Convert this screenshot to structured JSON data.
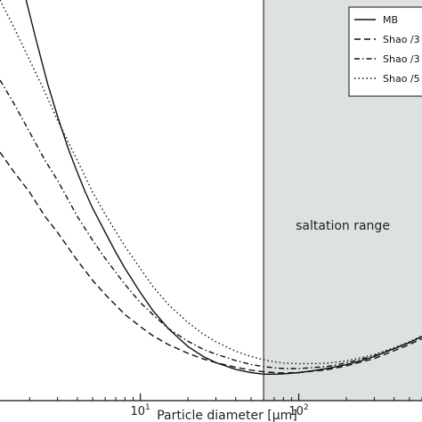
{
  "chart_data": {
    "type": "line",
    "xscale": "log",
    "xlim": [
      1.3,
      600
    ],
    "ylim": [
      0,
      1
    ],
    "xlabel": "Particle diameter [μm]",
    "xticks": [
      {
        "value": 10,
        "base": "10",
        "exp": "1"
      },
      {
        "value": 100,
        "base": "10",
        "exp": "2"
      }
    ],
    "grid": false,
    "legend": "top-right",
    "shaded_region": {
      "x0": 60,
      "x1": 600,
      "label": "saltation range",
      "color": "#dde1e1"
    },
    "series": [
      {
        "name": "MB",
        "style": "solid",
        "x": [
          1.9,
          2.2,
          2.6,
          3,
          3.5,
          4,
          4.5,
          5,
          6,
          7,
          8,
          10,
          12,
          15,
          20,
          25,
          30,
          40,
          50,
          60,
          70,
          80,
          100,
          120,
          150,
          200,
          250,
          300,
          400,
          500,
          600
        ],
        "y": [
          1.0,
          0.9,
          0.79,
          0.71,
          0.63,
          0.57,
          0.52,
          0.48,
          0.42,
          0.37,
          0.33,
          0.27,
          0.225,
          0.18,
          0.135,
          0.11,
          0.095,
          0.078,
          0.07,
          0.066,
          0.066,
          0.067,
          0.07,
          0.074,
          0.08,
          0.09,
          0.1,
          0.11,
          0.13,
          0.145,
          0.16
        ]
      },
      {
        "name": "Shao /3",
        "style": "dashed",
        "x": [
          1.3,
          1.6,
          2,
          2.5,
          3,
          4,
          5,
          6,
          8,
          10,
          12,
          15,
          20,
          25,
          30,
          40,
          50,
          60,
          70,
          80,
          100,
          150,
          200,
          300,
          400,
          500,
          600
        ],
        "y": [
          0.62,
          0.57,
          0.52,
          0.46,
          0.42,
          0.35,
          0.3,
          0.265,
          0.215,
          0.185,
          0.162,
          0.14,
          0.118,
          0.104,
          0.095,
          0.083,
          0.076,
          0.072,
          0.07,
          0.069,
          0.07,
          0.077,
          0.087,
          0.105,
          0.125,
          0.14,
          0.155
        ]
      },
      {
        "name": "Shao /3",
        "style": "dashdot",
        "x": [
          1.3,
          1.6,
          2,
          2.5,
          3,
          4,
          5,
          6,
          8,
          10,
          12,
          15,
          20,
          25,
          30,
          40,
          50,
          60,
          70,
          80,
          100,
          150,
          200,
          300,
          400,
          500,
          600
        ],
        "y": [
          0.8,
          0.74,
          0.67,
          0.6,
          0.55,
          0.46,
          0.4,
          0.355,
          0.29,
          0.245,
          0.215,
          0.18,
          0.148,
          0.128,
          0.116,
          0.1,
          0.09,
          0.085,
          0.082,
          0.08,
          0.08,
          0.085,
          0.094,
          0.112,
          0.13,
          0.145,
          0.16
        ]
      },
      {
        "name": "Shao /5",
        "style": "dotted",
        "x": [
          1.3,
          1.6,
          2,
          2.5,
          3,
          4,
          5,
          6,
          8,
          10,
          12,
          15,
          20,
          25,
          30,
          40,
          50,
          60,
          70,
          80,
          100,
          150,
          200,
          300,
          400,
          500,
          600
        ],
        "y": [
          1.0,
          0.93,
          0.85,
          0.77,
          0.7,
          0.6,
          0.52,
          0.465,
          0.385,
          0.33,
          0.285,
          0.24,
          0.195,
          0.166,
          0.147,
          0.123,
          0.11,
          0.102,
          0.097,
          0.094,
          0.092,
          0.093,
          0.099,
          0.115,
          0.132,
          0.147,
          0.162
        ]
      }
    ]
  }
}
